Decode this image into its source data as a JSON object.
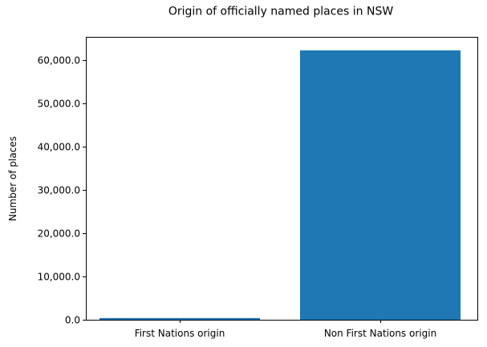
{
  "chart_data": {
    "type": "bar",
    "title": "Origin of officially named places in NSW",
    "xlabel": "",
    "ylabel": "Number of places",
    "categories": [
      "First Nations origin",
      "Non First Nations origin"
    ],
    "values": [
      400,
      62200
    ],
    "ylim": [
      0,
      65310
    ],
    "yticks": [
      0,
      10000,
      20000,
      30000,
      40000,
      50000,
      60000
    ],
    "ytick_labels": [
      "0.0",
      "10,000.0",
      "20,000.0",
      "30,000.0",
      "40,000.0",
      "50,000.0",
      "60,000.0"
    ],
    "grid": false,
    "legend": "none",
    "colors": {
      "bar": "#1f77b4",
      "axis": "#000000",
      "text": "#000000",
      "background": "#ffffff"
    }
  }
}
